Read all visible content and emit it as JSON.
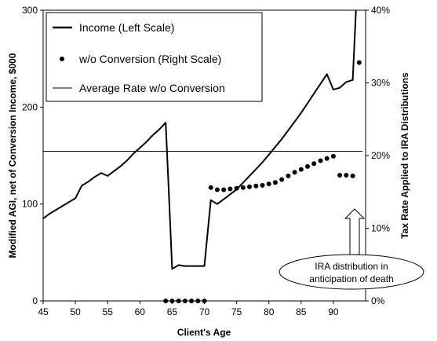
{
  "chart_data": {
    "type": "line",
    "xlabel": "Client's Age",
    "ylabel_left": "Modified AGI, net of Conversion Income, $000",
    "ylabel_right": "Tax Rate Applied to IRA Distributions",
    "xlim": [
      45,
      95
    ],
    "ylim_left": [
      0,
      300
    ],
    "ylim_right": [
      0,
      40
    ],
    "x_ticks": [
      45,
      50,
      55,
      60,
      65,
      70,
      75,
      80,
      85,
      90
    ],
    "y_left_ticks": [
      0,
      100,
      200,
      300
    ],
    "y_right_ticks": [
      "0%",
      "10%",
      "20%",
      "30%",
      "40%"
    ],
    "grid": false,
    "legend_placement": "top-left",
    "legend": [
      {
        "label": "Income (Left Scale)",
        "style": "thick-line"
      },
      {
        "label": "w/o Conversion (Right Scale)",
        "style": "dots"
      },
      {
        "label": "Average Rate w/o Conversion",
        "style": "thin-line"
      }
    ],
    "series": [
      {
        "name": "Income (Left Scale)",
        "axis": "left",
        "x": [
          45,
          46,
          47,
          48,
          49,
          50,
          51,
          52,
          53,
          54,
          55,
          56,
          57,
          58,
          59,
          60,
          61,
          62,
          63,
          64,
          64.5,
          65,
          66,
          67,
          68,
          69,
          70,
          71,
          72,
          73,
          74,
          75,
          76,
          77,
          78,
          79,
          80,
          81,
          82,
          83,
          84,
          85,
          86,
          87,
          88,
          89,
          90,
          91,
          92,
          93,
          93.5
        ],
        "y": [
          85,
          90,
          94,
          98,
          102,
          106,
          119,
          123,
          128,
          132,
          129,
          134,
          139,
          145,
          152,
          158,
          164,
          171,
          177,
          184,
          110,
          33,
          37,
          36,
          36,
          36,
          36,
          104,
          100,
          105,
          110,
          115,
          122,
          129,
          136,
          143,
          151,
          159,
          167,
          176,
          185,
          194,
          204,
          214,
          224,
          234,
          218,
          220,
          226,
          228,
          300
        ]
      },
      {
        "name": "w/o Conversion (Right Scale)",
        "axis": "right",
        "x": [
          64,
          65,
          66,
          67,
          68,
          69,
          70,
          71,
          72,
          73,
          74,
          75,
          76,
          77,
          78,
          79,
          80,
          81,
          82,
          83,
          84,
          85,
          86,
          87,
          88,
          89,
          90,
          91,
          92,
          93,
          94
        ],
        "y": [
          0,
          0,
          0,
          0,
          0,
          0,
          0,
          15.6,
          15.3,
          15.3,
          15.4,
          15.5,
          15.6,
          15.7,
          15.8,
          15.9,
          16.1,
          16.3,
          16.7,
          17.2,
          17.7,
          18.1,
          18.5,
          18.9,
          19.3,
          19.6,
          19.9,
          17.3,
          17.3,
          17.2,
          32.8
        ]
      },
      {
        "name": "Average Rate w/o Conversion",
        "axis": "right",
        "x": [
          45,
          94.5
        ],
        "y": [
          20.6,
          20.6
        ]
      }
    ],
    "annotations": [
      {
        "text_lines": [
          "IRA distribution in",
          "anticipation of death"
        ],
        "shape": "ellipse",
        "arrow_to": {
          "x": 92.5,
          "y_right": 13
        }
      }
    ]
  }
}
